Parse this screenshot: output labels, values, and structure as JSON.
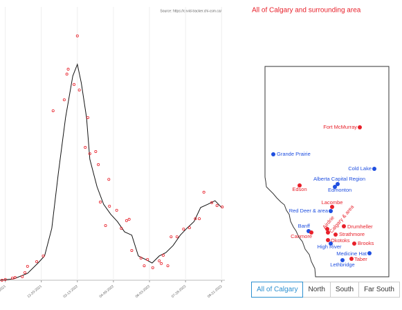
{
  "chart_data": {
    "type": "scatter-line",
    "source": "Source: https://covid-tracker.chi-csm.ca/",
    "xlim": [
      -8,
      335
    ],
    "ylim": [
      0,
      100
    ],
    "xticks": [
      {
        "value": 0,
        "label": "10-26-2021"
      },
      {
        "value": 55,
        "label": "12-20-2021"
      },
      {
        "value": 110,
        "label": "02-13-2022"
      },
      {
        "value": 165,
        "label": "04-09-2022"
      },
      {
        "value": 220,
        "label": "06-03-2022"
      },
      {
        "value": 275,
        "label": "07-28-2022"
      },
      {
        "value": 330,
        "label": "09-21-2022"
      }
    ],
    "grid": true,
    "points": {
      "color": "#e8202a",
      "x": [
        -5,
        0,
        11,
        15,
        26,
        30,
        34,
        48,
        58,
        73,
        90,
        94,
        96,
        105,
        110,
        113,
        122,
        126,
        129,
        138,
        142,
        145,
        153,
        158,
        159,
        170,
        177,
        185,
        189,
        193,
        207,
        212,
        217,
        225,
        235,
        238,
        241,
        248,
        253,
        262,
        272,
        281,
        290,
        296,
        303,
        315,
        323,
        331
      ],
      "values": [
        0,
        0.3,
        0.8,
        1,
        1.3,
        2.8,
        5.1,
        6.8,
        8.9,
        62,
        66,
        75.4,
        77.2,
        71.6,
        89.4,
        69.6,
        48.6,
        59.5,
        46.3,
        47.1,
        42.3,
        28.6,
        20,
        36.9,
        27.1,
        25.6,
        19,
        21.8,
        22.3,
        10.9,
        8.1,
        5.3,
        7.6,
        4.6,
        7.1,
        6.1,
        9.1,
        5.3,
        15.9,
        15.9,
        18.7,
        19.2,
        22.5,
        22.5,
        32.2,
        28.4,
        27.3,
        26.8
      ]
    },
    "line": {
      "color": "#111111",
      "x": [
        -8,
        13,
        34,
        50,
        60,
        71,
        81,
        92,
        103,
        110,
        116,
        124,
        129,
        140,
        150,
        161,
        171,
        182,
        193,
        203,
        214,
        224,
        235,
        245,
        256,
        267,
        277,
        288,
        298,
        309,
        320,
        330
      ],
      "values": [
        0,
        0.5,
        2.5,
        6.3,
        8.9,
        19,
        39.2,
        59.5,
        74.7,
        79,
        72.2,
        59.5,
        44.3,
        34.2,
        27.8,
        24.1,
        21.5,
        17.7,
        16.5,
        8.9,
        7.6,
        6.3,
        8.9,
        10.1,
        12.7,
        16.5,
        19,
        21.5,
        26.6,
        27.8,
        29.1,
        26.6
      ]
    }
  },
  "map": {
    "title": "All of Calgary and surrounding area",
    "cities": [
      {
        "label": "Fort McMurray",
        "color": "#e8202a"
      },
      {
        "label": "Grande Prairie",
        "color": "#1f4fe0"
      },
      {
        "label": "Cold Lake",
        "color": "#1f4fe0"
      },
      {
        "label": "Alberta Capital Region",
        "color": "#1f4fe0"
      },
      {
        "label": "Edmonton",
        "color": "#1f4fe0"
      },
      {
        "label": "Edson",
        "color": "#e8202a"
      },
      {
        "label": "Lacombe",
        "color": "#e8202a"
      },
      {
        "label": "Red Deer & area",
        "color": "#1f4fe0"
      },
      {
        "label": "Airdrie",
        "color": "#e8202a"
      },
      {
        "label": "Calgary & area",
        "color": "#e8202a"
      },
      {
        "label": "Banff",
        "color": "#1f4fe0"
      },
      {
        "label": "Canmore",
        "color": "#e8202a"
      },
      {
        "label": "Drumheller",
        "color": "#e8202a"
      },
      {
        "label": "Strathmore",
        "color": "#e8202a"
      },
      {
        "label": "Okotoks",
        "color": "#e8202a"
      },
      {
        "label": "High River",
        "color": "#1f4fe0"
      },
      {
        "label": "Brooks",
        "color": "#e8202a"
      },
      {
        "label": "Medicine Hat",
        "color": "#1f4fe0"
      },
      {
        "label": "Taber",
        "color": "#e8202a"
      },
      {
        "label": "Lethbridge",
        "color": "#1f4fe0"
      }
    ]
  },
  "buttons": [
    {
      "label": "All of Calgary",
      "active": true
    },
    {
      "label": "North",
      "active": false
    },
    {
      "label": "South",
      "active": false
    },
    {
      "label": "Far South",
      "active": false
    }
  ]
}
